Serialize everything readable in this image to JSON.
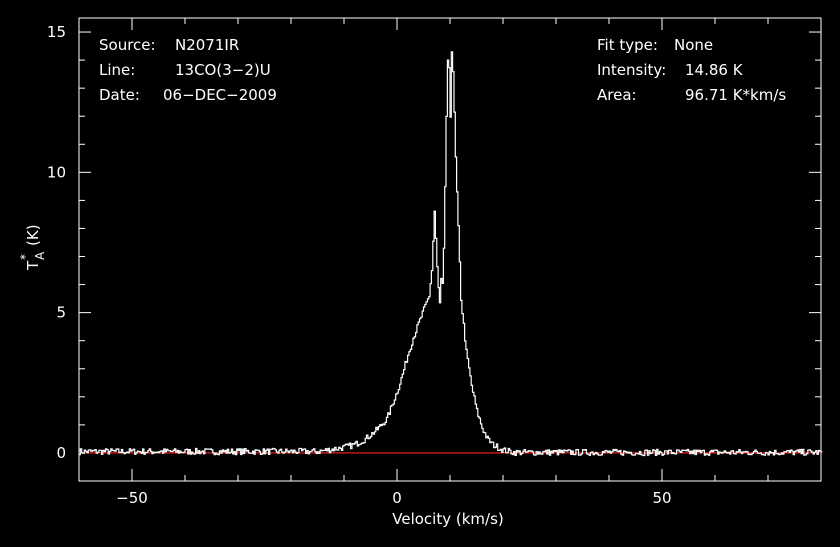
{
  "chart_data": {
    "type": "line",
    "xlabel": "Velocity (km/s)",
    "ylabel_main": "T",
    "ylabel_sub": "A",
    "ylabel_sup": "*",
    "ylabel_unit": "(K)",
    "xlim": [
      -60,
      80
    ],
    "ylim": [
      -1,
      15.5
    ],
    "x_ticks": [
      -50,
      0,
      50
    ],
    "x_tick_labels": [
      "−50",
      "0",
      "50"
    ],
    "y_ticks": [
      0,
      5,
      10,
      15
    ],
    "y_tick_labels": [
      "0",
      "5",
      "10",
      "15"
    ],
    "grid": false,
    "baseline": {
      "y": 0,
      "color": "#ff2020"
    },
    "line_color": "#ffffff",
    "series": [
      {
        "x": [
          -15,
          -10,
          -8,
          -6,
          -4,
          -2,
          0,
          1,
          2,
          3,
          4,
          5,
          6,
          6.5,
          7,
          7.3,
          7.6,
          8,
          8.3,
          8.6,
          9,
          9.3,
          9.6,
          10,
          10.3,
          10.6,
          11,
          11.5,
          12,
          13,
          14,
          15,
          16,
          17,
          18,
          20,
          22
        ],
        "y": [
          0.05,
          0.2,
          0.3,
          0.5,
          0.8,
          1.2,
          2.2,
          2.8,
          3.5,
          4.1,
          4.6,
          5.1,
          5.6,
          6.5,
          8.6,
          7.4,
          6.2,
          5.3,
          6.3,
          5.8,
          9.5,
          12.5,
          14.6,
          12.0,
          14.86,
          13.0,
          10.5,
          8.0,
          5.5,
          3.6,
          2.4,
          1.5,
          0.9,
          0.5,
          0.3,
          0.1,
          0.02
        ]
      }
    ],
    "info_left": [
      {
        "label": "Source:",
        "value": "N2071IR"
      },
      {
        "label": "Line:",
        "value": "13CO(3−2)U"
      },
      {
        "label": "Date:",
        "value": "06−DEC−2009"
      }
    ],
    "info_right": [
      {
        "label": "Fit type:",
        "value": "None"
      },
      {
        "label": "Intensity:",
        "value": "14.86 K"
      },
      {
        "label": "Area:",
        "value": "96.71 K*km/s"
      }
    ]
  }
}
